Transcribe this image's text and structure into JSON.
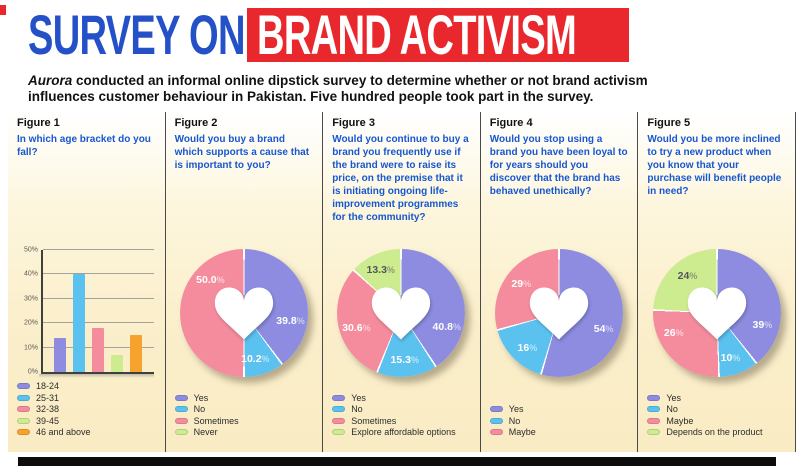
{
  "header": {
    "title_left": "SURVEY ON",
    "title_right": "BRAND ACTIVISM",
    "subtitle_lead": "Aurora",
    "subtitle_line1_rest": " conducted an informal online dipstick survey to determine whether or not brand activism",
    "subtitle_line2": "influences customer behaviour in Pakistan. Five hundred people took part in the survey.",
    "colors": {
      "title_blue": "#2450c8",
      "highlight_red": "#e9282e"
    }
  },
  "palette": {
    "purple": "#8d8ce0",
    "blue": "#5bc2f0",
    "pink": "#f58c9e",
    "green": "#cdeb8f",
    "orange": "#f8a22e"
  },
  "chart_data": [
    {
      "figure": "Figure 1",
      "type": "bar",
      "title": "In which age bracket do you fall?",
      "categories": [
        "18-24",
        "25-31",
        "32-38",
        "39-45",
        "46 and above"
      ],
      "values": [
        14,
        40,
        18,
        7,
        15
      ],
      "unit": "%",
      "ylim": [
        0,
        50
      ],
      "yticks": [
        "0%",
        "10%",
        "20%",
        "30%",
        "40%",
        "50%"
      ],
      "colors": [
        "purple",
        "blue",
        "pink",
        "green",
        "orange"
      ],
      "grid": true,
      "legend_position": "bottom"
    },
    {
      "figure": "Figure 2",
      "type": "pie",
      "title": "Would you buy a brand which supports a cause that is important to you?",
      "labels": [
        "Yes",
        "No",
        "Sometimes",
        "Never"
      ],
      "values": [
        39.8,
        10.2,
        50.0,
        0
      ],
      "display": [
        "39.8%",
        "10.2%",
        "50.0%",
        ""
      ],
      "colors": [
        "purple",
        "blue",
        "pink",
        "green"
      ],
      "label_angles": [
        100,
        166,
        315,
        0
      ],
      "legend_position": "bottom"
    },
    {
      "figure": "Figure 3",
      "type": "pie",
      "title": "Would you continue to buy a brand you frequently use if the brand were to raise its price, on the premise that it is initiating ongoing life-improvement programmes for the community?",
      "labels": [
        "Yes",
        "No",
        "Sometimes",
        "Explore affordable options"
      ],
      "values": [
        40.8,
        15.3,
        30.6,
        13.3
      ],
      "display": [
        "40.8%",
        "15.3%",
        "30.6%",
        "13.3%"
      ],
      "colors": [
        "purple",
        "blue",
        "pink",
        "green"
      ],
      "label_angles": [
        107,
        176,
        252,
        334
      ],
      "legend_position": "bottom"
    },
    {
      "figure": "Figure 4",
      "type": "pie",
      "title": "Would you stop using a brand you have been loyal to for years should you discover that the brand has behaved unethically?",
      "labels": [
        "Yes",
        "No",
        "Maybe"
      ],
      "values": [
        54,
        16,
        29
      ],
      "display": [
        "54%",
        "16%",
        "29%"
      ],
      "colors": [
        "purple",
        "blue",
        "pink"
      ],
      "label_angles": [
        110,
        222,
        307
      ],
      "legend_position": "bottom"
    },
    {
      "figure": "Figure 5",
      "type": "pie",
      "title": "Would you be more inclined to try a new product when you know that your purchase will benefit people in need?",
      "labels": [
        "Yes",
        "No",
        "Maybe",
        "Depends on the product"
      ],
      "values": [
        39,
        10,
        26,
        24
      ],
      "display": [
        "39%",
        "10%",
        "26%",
        "24%"
      ],
      "colors": [
        "purple",
        "blue",
        "pink",
        "green"
      ],
      "label_angles": [
        105,
        163,
        245,
        322
      ],
      "legend_position": "bottom"
    }
  ]
}
